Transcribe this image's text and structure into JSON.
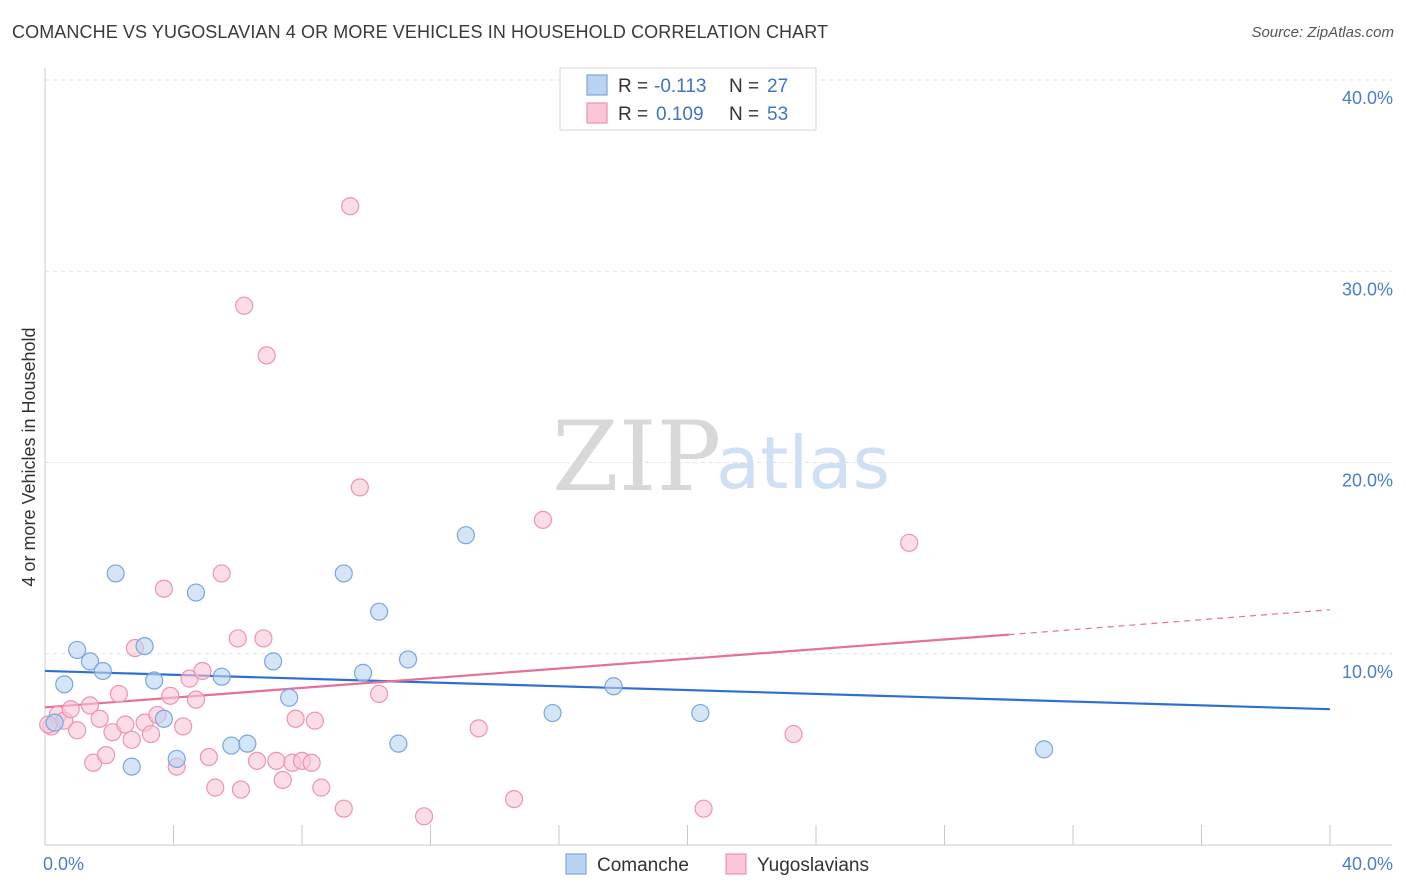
{
  "title": "COMANCHE VS YUGOSLAVIAN 4 OR MORE VEHICLES IN HOUSEHOLD CORRELATION CHART",
  "source": "Source: ZipAtlas.com",
  "watermark": {
    "zip": "ZIP",
    "atlas": "atlas"
  },
  "legend": {
    "r_label": "R =",
    "n_label": "N =",
    "entries": [
      {
        "r": "-0.113",
        "n": "27"
      },
      {
        "r": "0.109",
        "n": "53"
      }
    ]
  },
  "colors": {
    "comanche_fill": "#b9d3f3",
    "comanche_stroke": "#7aa6dd",
    "comanche_line": "#2f6fd0",
    "yugo_fill": "#f8c6d6",
    "yugo_stroke": "#ee93b1",
    "yugo_line": "#e5709a",
    "tick_text": "#4a7ec9"
  },
  "chart_data": {
    "type": "scatter",
    "title": "COMANCHE VS YUGOSLAVIAN 4 OR MORE VEHICLES IN HOUSEHOLD CORRELATION CHART",
    "xlabel": "",
    "ylabel": "4 or more Vehicles in Household",
    "xlim": [
      0,
      40
    ],
    "ylim": [
      0,
      40
    ],
    "x_ticks": [
      "0.0%",
      "40.0%"
    ],
    "y_ticks": [
      {
        "value": 10,
        "label": "10.0%"
      },
      {
        "value": 20,
        "label": "20.0%"
      },
      {
        "value": 30,
        "label": "30.0%"
      },
      {
        "value": 40,
        "label": "40.0%"
      }
    ],
    "grid": true,
    "legend_position": "top-center",
    "series": [
      {
        "name": "Comanche",
        "r": -0.113,
        "n": 27,
        "trend": {
          "x0": 0,
          "y0": 9.1,
          "x1": 40,
          "y1": 7.1
        },
        "points": [
          [
            0.3,
            6.4
          ],
          [
            0.6,
            8.4
          ],
          [
            1.0,
            10.2
          ],
          [
            1.4,
            9.6
          ],
          [
            1.8,
            9.1
          ],
          [
            2.2,
            14.2
          ],
          [
            2.7,
            4.1
          ],
          [
            3.1,
            10.4
          ],
          [
            3.4,
            8.6
          ],
          [
            3.7,
            6.6
          ],
          [
            4.1,
            4.5
          ],
          [
            4.7,
            13.2
          ],
          [
            5.5,
            8.8
          ],
          [
            5.8,
            5.2
          ],
          [
            6.3,
            5.3
          ],
          [
            7.1,
            9.6
          ],
          [
            7.6,
            7.7
          ],
          [
            9.3,
            14.2
          ],
          [
            9.9,
            9.0
          ],
          [
            10.4,
            12.2
          ],
          [
            11.0,
            5.3
          ],
          [
            11.3,
            9.7
          ],
          [
            13.1,
            16.2
          ],
          [
            15.8,
            6.9
          ],
          [
            17.7,
            8.3
          ],
          [
            20.4,
            6.9
          ],
          [
            31.1,
            5.0
          ]
        ]
      },
      {
        "name": "Yugoslavians",
        "r": 0.109,
        "n": 53,
        "trend": {
          "x0": 0,
          "y0": 7.2,
          "x1": 30,
          "y1": 11.0,
          "dash_x1": 40,
          "dash_y1": 12.3
        },
        "points": [
          [
            0.2,
            6.2
          ],
          [
            0.4,
            6.8
          ],
          [
            0.6,
            6.5
          ],
          [
            0.8,
            7.1
          ],
          [
            1.0,
            6.0
          ],
          [
            1.4,
            7.3
          ],
          [
            1.5,
            4.3
          ],
          [
            1.7,
            6.6
          ],
          [
            1.9,
            4.7
          ],
          [
            2.1,
            5.9
          ],
          [
            2.3,
            7.9
          ],
          [
            2.5,
            6.3
          ],
          [
            2.7,
            5.5
          ],
          [
            2.8,
            10.3
          ],
          [
            3.1,
            6.4
          ],
          [
            3.3,
            5.8
          ],
          [
            3.5,
            6.8
          ],
          [
            3.7,
            13.4
          ],
          [
            3.9,
            7.8
          ],
          [
            4.1,
            4.1
          ],
          [
            4.3,
            6.2
          ],
          [
            4.5,
            8.7
          ],
          [
            4.7,
            7.6
          ],
          [
            4.9,
            9.1
          ],
          [
            5.1,
            4.6
          ],
          [
            5.3,
            3.0
          ],
          [
            5.5,
            14.2
          ],
          [
            6.0,
            10.8
          ],
          [
            6.1,
            2.9
          ],
          [
            6.2,
            28.2
          ],
          [
            6.6,
            4.4
          ],
          [
            6.8,
            10.8
          ],
          [
            6.9,
            25.6
          ],
          [
            7.2,
            4.4
          ],
          [
            7.4,
            3.4
          ],
          [
            7.7,
            4.3
          ],
          [
            7.8,
            6.6
          ],
          [
            8.0,
            4.4
          ],
          [
            8.3,
            4.3
          ],
          [
            8.4,
            6.5
          ],
          [
            8.6,
            3.0
          ],
          [
            9.3,
            1.9
          ],
          [
            9.5,
            33.4
          ],
          [
            9.8,
            18.7
          ],
          [
            10.4,
            7.9
          ],
          [
            11.8,
            1.5
          ],
          [
            13.5,
            6.1
          ],
          [
            14.6,
            2.4
          ],
          [
            15.5,
            17.0
          ],
          [
            20.5,
            1.9
          ],
          [
            23.3,
            5.8
          ],
          [
            26.9,
            15.8
          ],
          [
            0.1,
            6.3
          ]
        ]
      }
    ]
  },
  "bottom_legend": {
    "items": [
      "Comanche",
      "Yugoslavians"
    ]
  }
}
